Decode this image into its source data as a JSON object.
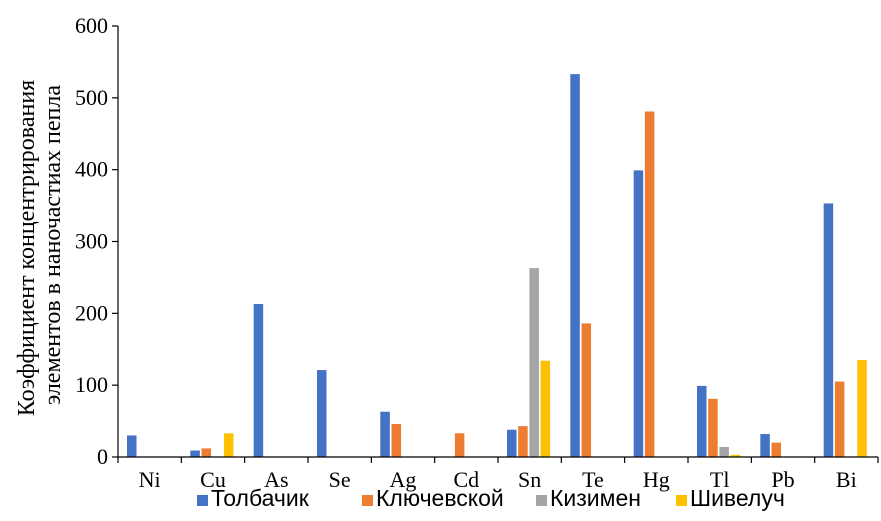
{
  "chart_data": {
    "type": "bar",
    "title": "",
    "xlabel": "",
    "ylabel_lines": [
      "Коэффициент концентрирования",
      "элементов в наночастиах пепла"
    ],
    "ylim": [
      0,
      600
    ],
    "yticks": [
      0,
      100,
      200,
      300,
      400,
      500,
      600
    ],
    "grid": false,
    "legend_position": "bottom",
    "categories": [
      "Ni",
      "Cu",
      "As",
      "Se",
      "Ag",
      "Cd",
      "Sn",
      "Te",
      "Hg",
      "Tl",
      "Pb",
      "Bi"
    ],
    "series": [
      {
        "name": "Толбачик",
        "color": "#4472C4",
        "values": [
          30,
          9,
          213,
          121,
          63,
          0,
          38,
          533,
          399,
          99,
          32,
          353
        ]
      },
      {
        "name": "Ключевской",
        "color": "#ED7D31",
        "values": [
          0,
          12,
          0,
          0,
          46,
          33,
          43,
          186,
          481,
          81,
          20,
          105
        ]
      },
      {
        "name": "Кизимен",
        "color": "#A5A5A5",
        "values": [
          0,
          0,
          0,
          0,
          0,
          0,
          263,
          0,
          0,
          14,
          0,
          0
        ]
      },
      {
        "name": "Шивелуч",
        "color": "#FFC000",
        "values": [
          0,
          33,
          0,
          0,
          0,
          0,
          134,
          0,
          0,
          3,
          0,
          135
        ]
      }
    ]
  }
}
